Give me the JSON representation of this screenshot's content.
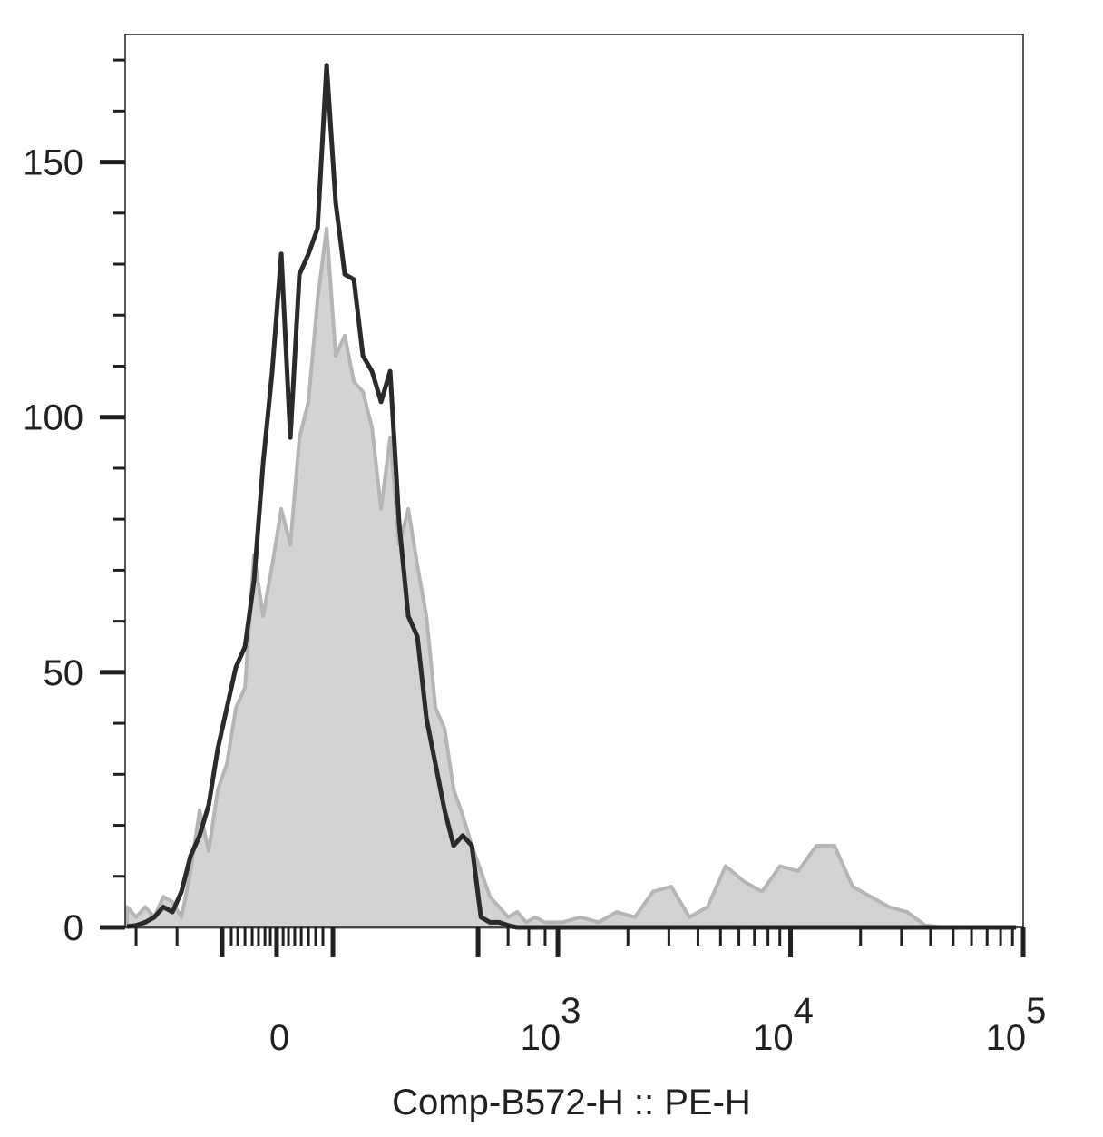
{
  "chart_data": {
    "type": "histogram-overlay",
    "x_axis_label": "Comp-B572-H :: PE-H",
    "xlim": [
      1.14,
      5.0
    ],
    "ylim": [
      0,
      175
    ],
    "xticks": [
      {
        "value": 1.791,
        "label": "0"
      },
      {
        "value": 3,
        "label": "10",
        "exponent": "3"
      },
      {
        "value": 4,
        "label": "10",
        "exponent": "4"
      },
      {
        "value": 5,
        "label": "10",
        "exponent": "5"
      }
    ],
    "xmajormarks": [
      1.557,
      2.033,
      2.657
    ],
    "xminorticks": [
      1.187,
      1.363,
      1.596,
      1.624,
      1.655,
      1.686,
      1.713,
      1.741,
      1.764,
      1.819,
      1.842,
      1.869,
      1.897,
      1.928,
      1.959,
      1.99,
      2.786,
      2.875,
      2.945,
      3.301,
      3.477,
      3.602,
      3.699,
      3.778,
      3.845,
      3.903,
      3.954,
      4.301,
      4.477,
      4.602,
      4.699,
      4.778,
      4.845,
      4.903,
      4.954
    ],
    "yticks": [
      0,
      50,
      100,
      150
    ],
    "yminorticks": [
      10,
      20,
      30,
      40,
      60,
      70,
      80,
      90,
      110,
      120,
      130,
      140,
      160,
      170
    ],
    "x": [
      1.148,
      1.187,
      1.226,
      1.265,
      1.304,
      1.343,
      1.382,
      1.421,
      1.46,
      1.499,
      1.538,
      1.577,
      1.616,
      1.655,
      1.694,
      1.733,
      1.772,
      1.811,
      1.85,
      1.889,
      1.928,
      1.967,
      2.006,
      2.045,
      2.084,
      2.123,
      2.162,
      2.201,
      2.24,
      2.279,
      2.318,
      2.357,
      2.396,
      2.435,
      2.474,
      2.513,
      2.552,
      2.591,
      2.63,
      2.669,
      2.708,
      2.747,
      2.786,
      2.825,
      2.864,
      2.903,
      2.942,
      3.02,
      3.097,
      3.175,
      3.253,
      3.331,
      3.409,
      3.487,
      3.565,
      3.643,
      3.721,
      3.799,
      3.877,
      3.955,
      4.033,
      4.111,
      4.189,
      4.267,
      4.345,
      4.423,
      4.501,
      4.579,
      4.657,
      4.735,
      4.813,
      4.891,
      4.969
    ],
    "series": [
      {
        "style": "area",
        "color": "#d3d3d3",
        "stroke": "#b5b5b5",
        "values": [
          4,
          2,
          4,
          2,
          6,
          5,
          2,
          11,
          23,
          15,
          27,
          32,
          43,
          47,
          73,
          61,
          71,
          82,
          75,
          96,
          103,
          123,
          137,
          112,
          116,
          107,
          105,
          98,
          82,
          96,
          75,
          82,
          71,
          61,
          43,
          39,
          27,
          22,
          16,
          11,
          6,
          4,
          2,
          3,
          1,
          2,
          1,
          1,
          2,
          1,
          3,
          2,
          7,
          8,
          2,
          4,
          12,
          9,
          7,
          12,
          11,
          16,
          16,
          8,
          6,
          4,
          3,
          0.4,
          0,
          0,
          0,
          0,
          0
        ]
      },
      {
        "style": "line",
        "color": "#2a2a2a",
        "values": [
          0.2,
          0.4,
          1,
          2,
          4,
          3,
          7,
          14,
          18,
          24,
          35,
          43,
          51,
          55,
          68,
          91,
          109,
          132,
          96,
          128,
          132,
          137,
          169,
          142,
          128,
          127,
          112,
          109,
          103,
          109,
          79,
          61,
          57,
          41,
          32,
          23,
          16,
          18,
          16,
          2,
          1,
          1,
          0.4,
          0,
          0,
          0,
          0,
          0,
          0,
          0,
          0,
          0,
          0,
          0,
          0,
          0,
          0,
          0,
          0,
          0,
          0,
          0,
          0,
          0,
          0,
          0,
          0,
          0,
          0,
          0,
          0,
          0,
          0
        ]
      }
    ]
  }
}
